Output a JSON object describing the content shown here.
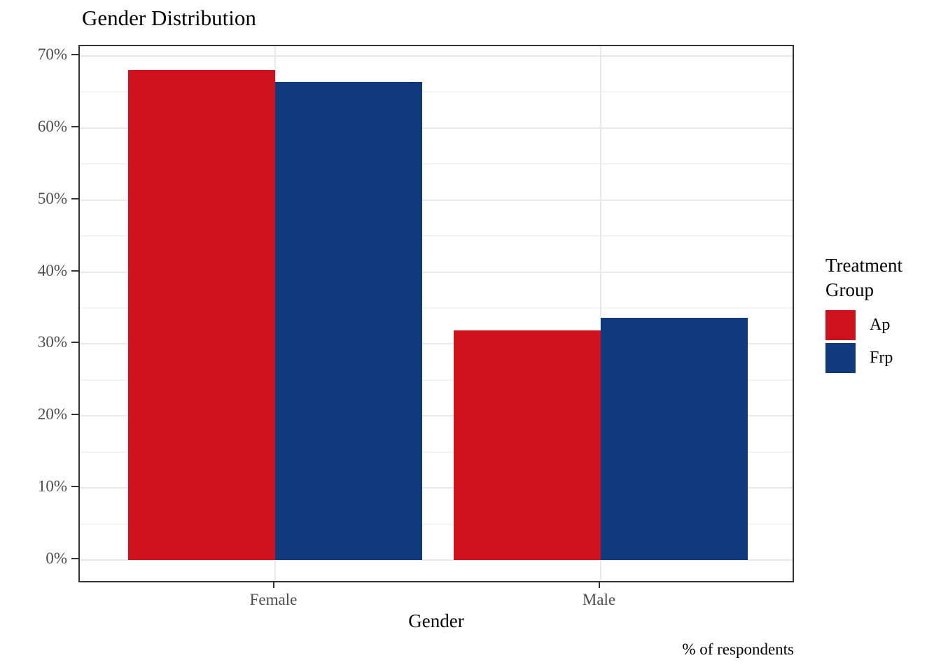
{
  "chart": {
    "title": "Gender Distribution",
    "xlabel": "Gender",
    "caption": "% of respondents",
    "legend_title": "Treatment Group"
  },
  "chart_data": {
    "type": "bar",
    "title": "Gender Distribution",
    "categories": [
      "Female",
      "Male"
    ],
    "series": [
      {
        "name": "Ap",
        "color": "#D0121F",
        "values": [
          68.1,
          31.9
        ]
      },
      {
        "name": "Frp",
        "color": "#113A7E",
        "values": [
          66.4,
          33.6
        ]
      }
    ],
    "xlabel": "Gender",
    "ylabel": "",
    "caption": "% of respondents",
    "legend_title": "Treatment Group",
    "legend_position": "right",
    "ylim": [
      0,
      70
    ],
    "y_tick_labels": [
      "0%",
      "10%",
      "20%",
      "30%",
      "40%",
      "50%",
      "60%",
      "70%"
    ],
    "y_major_step": 10,
    "y_minor_step": 5,
    "grid": "horizontal major+minor, vertical major at categories",
    "bar_mode": "dodged"
  },
  "theme": {
    "background": "#FFFFFF",
    "panel_border": "#333333",
    "grid_major": "#E9E9E9",
    "grid_minor": "#F4F4F4",
    "axis_text": "#4D4D4D",
    "title_text": "#000000",
    "tick_mark": "#333333"
  }
}
